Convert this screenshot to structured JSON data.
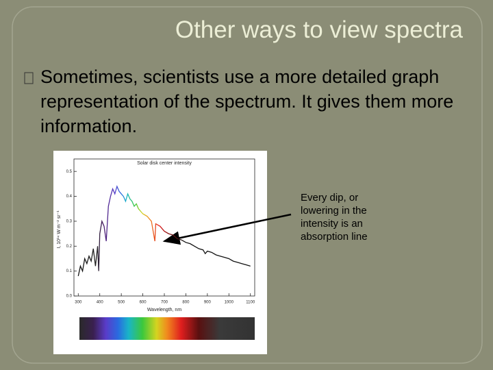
{
  "slide": {
    "title": "Other ways to view spectra",
    "bullet": "Sometimes, scientists use a more detailed graph representation of the spectrum.  It gives them more information.",
    "annotation": "Every dip, or lowering in the intensity is an absorption line"
  },
  "chart_data": {
    "type": "line",
    "title": "Solar disk center intensity",
    "x_label": "Wavelength, nm",
    "y_label": "I, 10¹⁴ W m⁻² sr⁻¹",
    "x": [
      300,
      310,
      320,
      330,
      340,
      350,
      360,
      370,
      380,
      390,
      395,
      400,
      410,
      420,
      430,
      440,
      450,
      460,
      470,
      480,
      490,
      500,
      510,
      520,
      530,
      540,
      550,
      560,
      570,
      580,
      590,
      600,
      620,
      640,
      656,
      660,
      680,
      700,
      720,
      740,
      760,
      780,
      800,
      820,
      840,
      860,
      880,
      890,
      900,
      920,
      940,
      960,
      980,
      1000,
      1020,
      1040,
      1060,
      1080,
      1100
    ],
    "values": [
      0.08,
      0.12,
      0.1,
      0.15,
      0.13,
      0.16,
      0.14,
      0.19,
      0.12,
      0.2,
      0.1,
      0.25,
      0.3,
      0.28,
      0.22,
      0.36,
      0.4,
      0.43,
      0.41,
      0.44,
      0.42,
      0.41,
      0.4,
      0.38,
      0.41,
      0.39,
      0.38,
      0.36,
      0.37,
      0.35,
      0.34,
      0.33,
      0.32,
      0.3,
      0.22,
      0.29,
      0.28,
      0.26,
      0.25,
      0.245,
      0.23,
      0.225,
      0.215,
      0.21,
      0.2,
      0.19,
      0.185,
      0.17,
      0.18,
      0.175,
      0.165,
      0.16,
      0.155,
      0.15,
      0.14,
      0.135,
      0.13,
      0.125,
      0.12
    ],
    "xlim": [
      280,
      1120
    ],
    "ylim": [
      0,
      0.55
    ],
    "xticks": [
      300,
      400,
      500,
      600,
      700,
      800,
      900,
      1000,
      1100
    ],
    "yticks": [
      {
        "value": 0,
        "label": "0.0"
      },
      0.1,
      0.2,
      0.3,
      0.4,
      0.5
    ]
  }
}
